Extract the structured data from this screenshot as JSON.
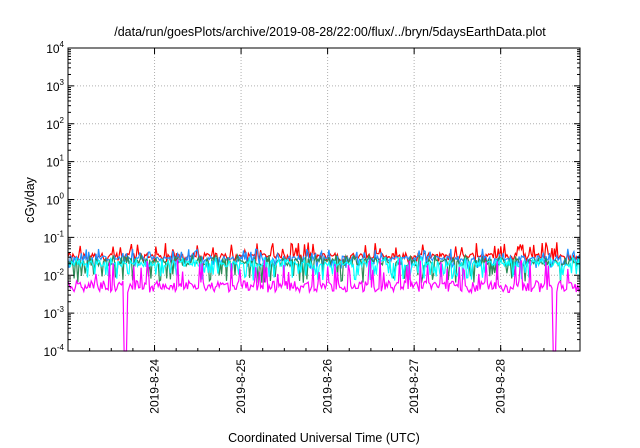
{
  "chart_data": {
    "type": "line",
    "title": "/data/run/goesPlots/archive/2019-08-28/22:00/flux/../bryn/5daysEarthData.plot",
    "xlabel": "Coordinated Universal Time (UTC)",
    "ylabel": "cGy/day",
    "y_scale": "log",
    "ylim": [
      0.0001,
      10000
    ],
    "y_ticks": [
      {
        "base": "10",
        "exp": "-4",
        "value": 0.0001
      },
      {
        "base": "10",
        "exp": "-3",
        "value": 0.001
      },
      {
        "base": "10",
        "exp": "-2",
        "value": 0.01
      },
      {
        "base": "10",
        "exp": "-1",
        "value": 0.1
      },
      {
        "base": "10",
        "exp": "0",
        "value": 1
      },
      {
        "base": "10",
        "exp": "1",
        "value": 10
      },
      {
        "base": "10",
        "exp": "2",
        "value": 100
      },
      {
        "base": "10",
        "exp": "3",
        "value": 1000
      },
      {
        "base": "10",
        "exp": "4",
        "value": 10000
      }
    ],
    "x_ticks": [
      "2019-8-24",
      "2019-8-25",
      "2019-8-26",
      "2019-8-27",
      "2019-8-28"
    ],
    "xlim": [
      "2019-08-23T00:00",
      "2019-08-28T22:00"
    ],
    "grid": true,
    "series": [
      {
        "color": "#ff0000",
        "median": 0.033,
        "spread_low": 0.022,
        "spread_high": 0.075
      },
      {
        "color": "#1e90ff",
        "median": 0.028,
        "spread_low": 0.015,
        "spread_high": 0.05
      },
      {
        "color": "#2e8b57",
        "median": 0.022,
        "spread_low": 0.006,
        "spread_high": 0.035
      },
      {
        "color": "#00ffff",
        "median": 0.02,
        "spread_low": 0.007,
        "spread_high": 0.03
      },
      {
        "color": "#ff00ff",
        "median": 0.0055,
        "spread_low": 0.0035,
        "spread_high": 0.028,
        "dropouts": [
          "2019-08-23T16:00",
          "2019-08-28T15:00"
        ]
      }
    ]
  }
}
